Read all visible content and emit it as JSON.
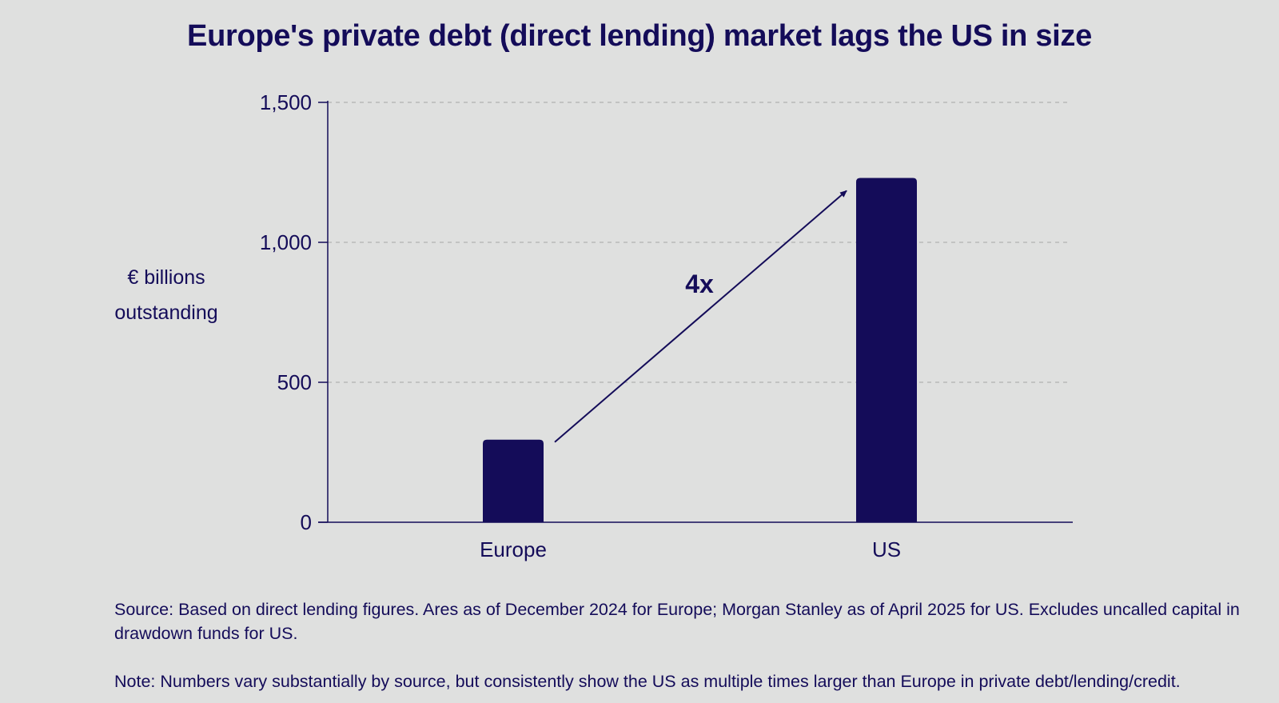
{
  "title": "Europe's private debt (direct lending) market lags the US in size",
  "ylabel_line1": "€ billions",
  "ylabel_line2": "outstanding",
  "source_note": "Source: Based on direct lending figures. Ares as of December 2024 for Europe; Morgan Stanley as of April 2025 for US. Excludes uncalled capital in drawdown funds for US.",
  "note": "Note: Numbers vary substantially by source, but consistently show the US as multiple times larger than Europe in private debt/lending/credit.",
  "colors": {
    "bar": "#140c59",
    "text": "#140c59",
    "grid": "#b9b9b9",
    "background": "#dfe0df"
  },
  "chart_data": {
    "type": "bar",
    "title": "Europe's private debt (direct lending) market lags the US in size",
    "xlabel": "",
    "ylabel": "€ billions outstanding",
    "categories": [
      "Europe",
      "US"
    ],
    "values": [
      295,
      1230
    ],
    "ylim": [
      0,
      1500
    ],
    "yticks": [
      0,
      500,
      1000,
      1500
    ],
    "ytick_labels": [
      "0",
      "500",
      "1,000",
      "1,500"
    ],
    "grid": true,
    "legend": "none",
    "annotation": {
      "text": "4x",
      "from_category": "Europe",
      "to_category": "US"
    }
  }
}
